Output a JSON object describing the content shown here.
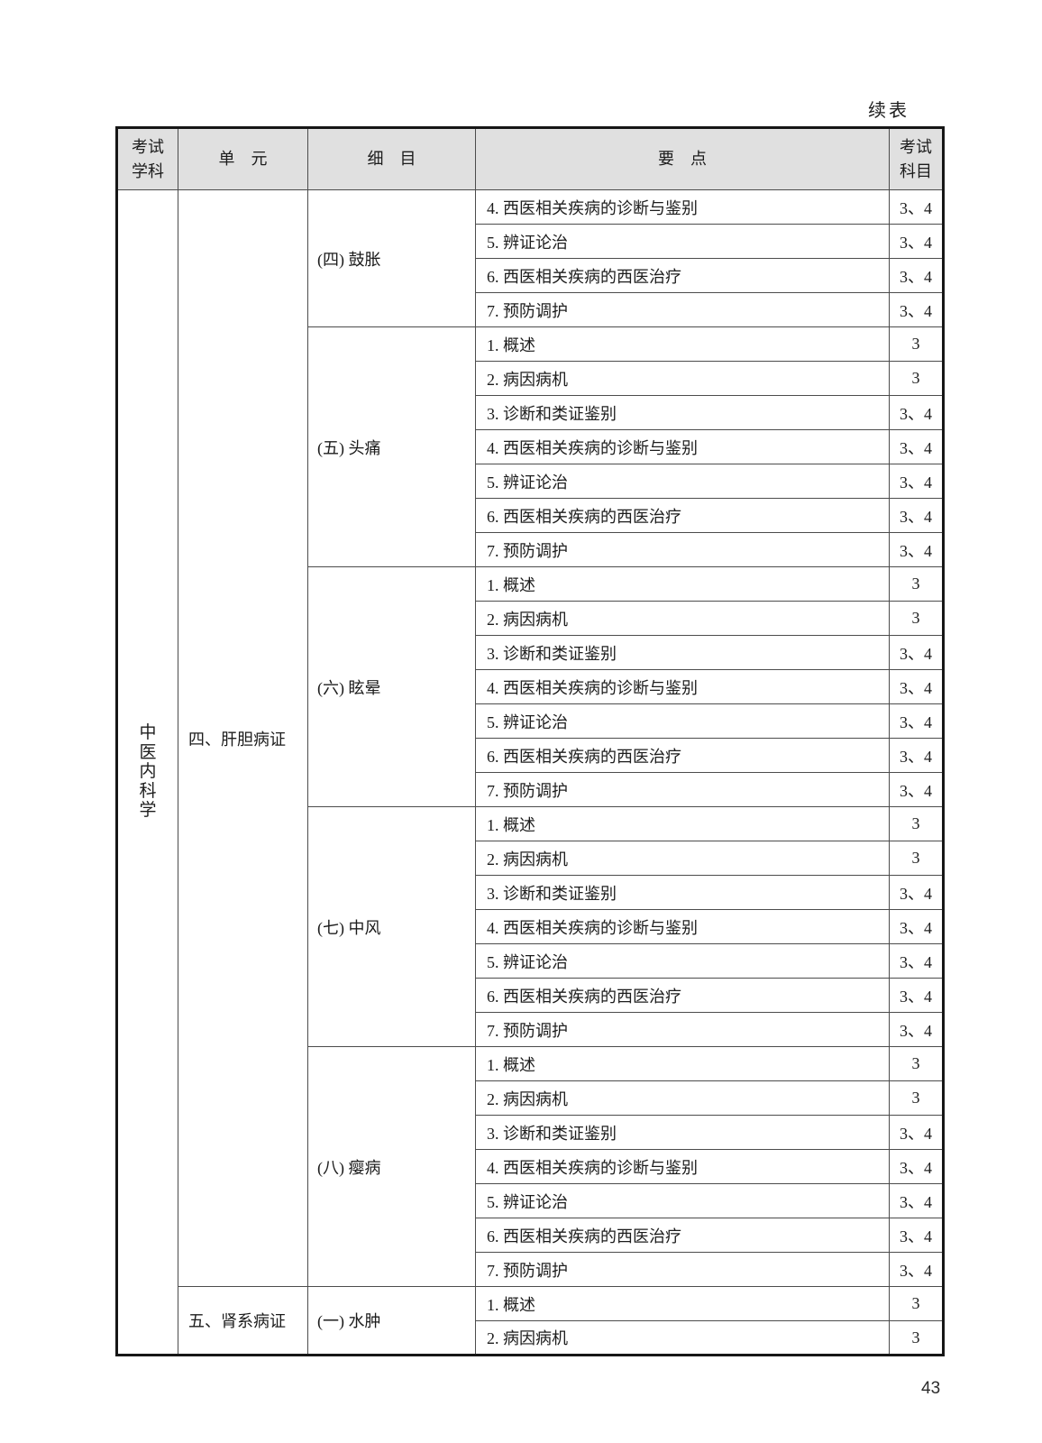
{
  "page": {
    "continued_label": "续表",
    "page_number": "43"
  },
  "table": {
    "headers": {
      "subject": "考试学科",
      "unit": "单　元",
      "detail": "细　目",
      "points": "要　点",
      "exam": "考试科目"
    },
    "subject_column": "中医内科学",
    "units": [
      {
        "label": "四、肝胆病证"
      },
      {
        "label": "五、肾系病证"
      }
    ],
    "sections": [
      {
        "detail": "(四) 鼓胀",
        "points": [
          {
            "text": "4. 西医相关疾病的诊断与鉴别",
            "subjects": "3、4"
          },
          {
            "text": "5. 辨证论治",
            "subjects": "3、4"
          },
          {
            "text": "6. 西医相关疾病的西医治疗",
            "subjects": "3、4"
          },
          {
            "text": "7. 预防调护",
            "subjects": "3、4"
          }
        ]
      },
      {
        "detail": "(五) 头痛",
        "points": [
          {
            "text": "1. 概述",
            "subjects": "3"
          },
          {
            "text": "2. 病因病机",
            "subjects": "3"
          },
          {
            "text": "3. 诊断和类证鉴别",
            "subjects": "3、4"
          },
          {
            "text": "4. 西医相关疾病的诊断与鉴别",
            "subjects": "3、4"
          },
          {
            "text": "5. 辨证论治",
            "subjects": "3、4"
          },
          {
            "text": "6. 西医相关疾病的西医治疗",
            "subjects": "3、4"
          },
          {
            "text": "7. 预防调护",
            "subjects": "3、4"
          }
        ]
      },
      {
        "detail": "(六) 眩晕",
        "points": [
          {
            "text": "1. 概述",
            "subjects": "3"
          },
          {
            "text": "2. 病因病机",
            "subjects": "3"
          },
          {
            "text": "3. 诊断和类证鉴别",
            "subjects": "3、4"
          },
          {
            "text": "4. 西医相关疾病的诊断与鉴别",
            "subjects": "3、4"
          },
          {
            "text": "5. 辨证论治",
            "subjects": "3、4"
          },
          {
            "text": "6. 西医相关疾病的西医治疗",
            "subjects": "3、4"
          },
          {
            "text": "7. 预防调护",
            "subjects": "3、4"
          }
        ]
      },
      {
        "detail": "(七) 中风",
        "points": [
          {
            "text": "1. 概述",
            "subjects": "3"
          },
          {
            "text": "2. 病因病机",
            "subjects": "3"
          },
          {
            "text": "3. 诊断和类证鉴别",
            "subjects": "3、4"
          },
          {
            "text": "4. 西医相关疾病的诊断与鉴别",
            "subjects": "3、4"
          },
          {
            "text": "5. 辨证论治",
            "subjects": "3、4"
          },
          {
            "text": "6. 西医相关疾病的西医治疗",
            "subjects": "3、4"
          },
          {
            "text": "7. 预防调护",
            "subjects": "3、4"
          }
        ]
      },
      {
        "detail": "(八) 瘿病",
        "points": [
          {
            "text": "1. 概述",
            "subjects": "3"
          },
          {
            "text": "2. 病因病机",
            "subjects": "3"
          },
          {
            "text": "3. 诊断和类证鉴别",
            "subjects": "3、4"
          },
          {
            "text": "4. 西医相关疾病的诊断与鉴别",
            "subjects": "3、4"
          },
          {
            "text": "5. 辨证论治",
            "subjects": "3、4"
          },
          {
            "text": "6. 西医相关疾病的西医治疗",
            "subjects": "3、4"
          },
          {
            "text": "7. 预防调护",
            "subjects": "3、4"
          }
        ]
      },
      {
        "detail": "(一) 水肿",
        "points": [
          {
            "text": "1. 概述",
            "subjects": "3"
          },
          {
            "text": "2. 病因病机",
            "subjects": "3"
          }
        ]
      }
    ]
  }
}
